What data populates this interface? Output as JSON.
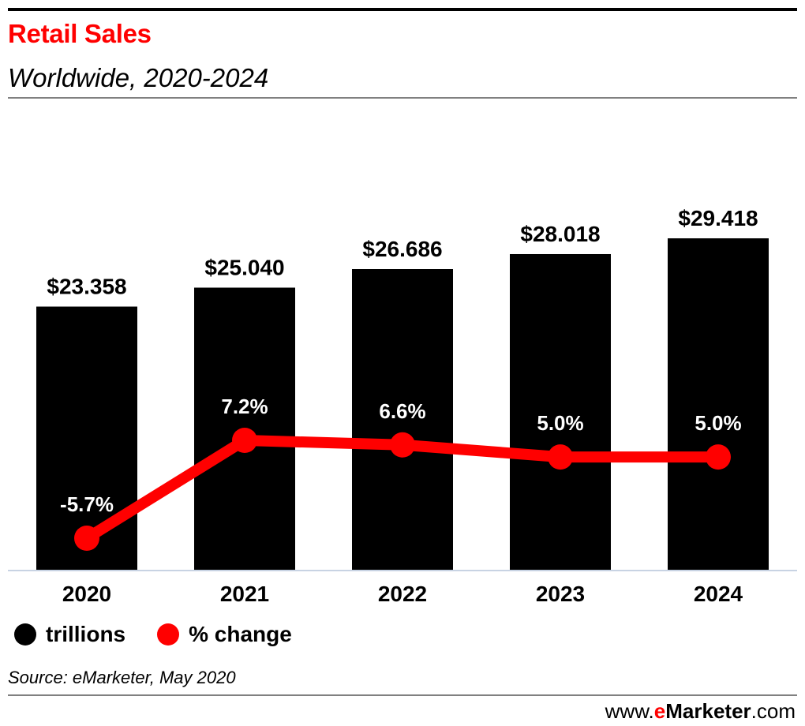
{
  "header": {
    "title": "Retail Sales",
    "subtitle": "Worldwide, 2020-2024"
  },
  "legend": [
    {
      "label": "trillions",
      "color": "#000000",
      "icon": "circle-icon"
    },
    {
      "label": "% change",
      "color": "#ff0000",
      "icon": "circle-icon"
    }
  ],
  "footer": {
    "source": "Source: eMarketer, May 2020",
    "brand_prefix": "www.",
    "brand_e": "e",
    "brand_name": "Marketer",
    "brand_suffix": ".com"
  },
  "colors": {
    "bar": "#000000",
    "line": "#ff0000",
    "title": "#ff0000",
    "baseline": "#c8d3e3"
  },
  "chart_data": {
    "type": "bar",
    "title": "Retail Sales",
    "subtitle": "Worldwide, 2020-2024",
    "xlabel": "",
    "ylabel": "",
    "categories": [
      "2020",
      "2021",
      "2022",
      "2023",
      "2024"
    ],
    "grid": false,
    "legend_position": "bottom-left",
    "series": [
      {
        "name": "trillions",
        "type": "bar",
        "values": [
          23.358,
          25.04,
          26.686,
          28.018,
          29.418
        ],
        "labels": [
          "$23.358",
          "$25.040",
          "$26.686",
          "$28.018",
          "$29.418"
        ],
        "ylim": [
          0,
          29.418
        ]
      },
      {
        "name": "% change",
        "type": "line",
        "values": [
          -5.7,
          7.2,
          6.6,
          5.0,
          5.0
        ],
        "labels": [
          "-5.7%",
          "7.2%",
          "6.6%",
          "5.0%",
          "5.0%"
        ]
      }
    ],
    "source": "Source: eMarketer, May 2020"
  }
}
